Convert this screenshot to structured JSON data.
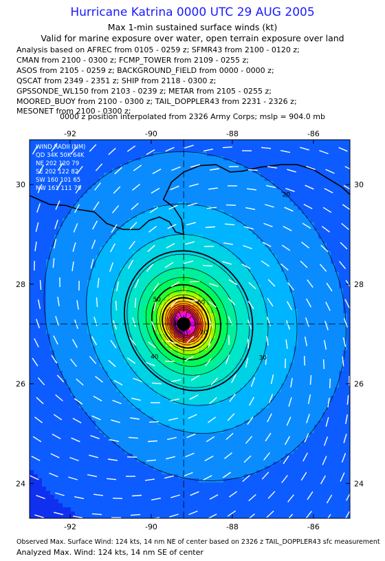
{
  "header": {
    "title": "Hurricane Katrina 0000 UTC 29 AUG 2005",
    "subtitle1": "Max 1-min sustained surface winds (kt)",
    "subtitle2": "Valid for marine exposure over water, open terrain exposure over land"
  },
  "sources": [
    "Analysis based on  AFREC from 0105 - 0259 z;  SFMR43 from 2100 - 0120 z;",
    "CMAN from 2100 - 0300 z;  FCMP_TOWER from 2109 - 0255 z;",
    "ASOS from 2105 - 0259 z;  BACKGROUND_FIELD from 0000 - 0000 z;",
    "QSCAT from 2349 - 2351 z;  SHIP from 2118 - 0300 z;",
    "GPSSONDE_WL150 from 2103 - 0239 z;  METAR from 2105 - 0255 z;",
    "MOORED_BUOY from 2100 - 0300 z;  TAIL_DOPPLER43 from 2231 - 2326 z;",
    "MESONET from 2100 - 0300 z;"
  ],
  "position_note": "0000 z position interpolated from 2326 Army Corps; mslp = 904.0 mb",
  "footer": {
    "line1": "Observed Max. Surface Wind: 124 kts, 14 nm NE of center based on 2326 z TAIL_DOPPLER43 sfc measurement",
    "line2": "Analyzed Max. Wind: 124 kts, 14 nm SE of center"
  },
  "wind_radii": {
    "header": "WIND RADII (NM)",
    "columns": "QD 34K 50K 64K",
    "rows": [
      "NE 202 120  79",
      "SE 202 122  82",
      "SW 160 101  65",
      "NW 161 111  79"
    ]
  },
  "chart_data": {
    "type": "contour",
    "title": "Hurricane Katrina 0000 UTC 29 AUG 2005",
    "x_axis": {
      "label": "",
      "range": [
        -93.0,
        -85.1
      ],
      "ticks": [
        -92,
        -90,
        -88,
        -86
      ]
    },
    "y_axis": {
      "label": "",
      "range": [
        23.3,
        30.9
      ],
      "ticks": [
        24,
        26,
        28,
        30
      ]
    },
    "center": {
      "lon": -89.2,
      "lat": 27.2
    },
    "max_wind_kt": 124,
    "contour_interval_kt": 5,
    "contour_levels_labeled": [
      20,
      30,
      40,
      50,
      60,
      70
    ],
    "contour_levels_bold": [
      34,
      50,
      64
    ],
    "color_scale": [
      {
        "min": 0,
        "color": "#1030f0"
      },
      {
        "min": 15,
        "color": "#0c5cff"
      },
      {
        "min": 20,
        "color": "#0a8cff"
      },
      {
        "min": 25,
        "color": "#00b4ff"
      },
      {
        "min": 30,
        "color": "#00d2e6"
      },
      {
        "min": 35,
        "color": "#00e6c8"
      },
      {
        "min": 40,
        "color": "#00f09a"
      },
      {
        "min": 45,
        "color": "#00fa5a"
      },
      {
        "min": 50,
        "color": "#2aff2a"
      },
      {
        "min": 55,
        "color": "#9cff00"
      },
      {
        "min": 60,
        "color": "#f0ff00"
      },
      {
        "min": 65,
        "color": "#ffd200"
      },
      {
        "min": 70,
        "color": "#ffa000"
      },
      {
        "min": 75,
        "color": "#ff6a00"
      },
      {
        "min": 80,
        "color": "#ff3c1e"
      },
      {
        "min": 90,
        "color": "#ff1e64"
      },
      {
        "min": 100,
        "color": "#ff14b4"
      },
      {
        "min": 110,
        "color": "#f00af0"
      },
      {
        "min": 120,
        "color": "#c800dc"
      }
    ],
    "grid": "center crosshair only",
    "legend_placement": "top-left"
  }
}
